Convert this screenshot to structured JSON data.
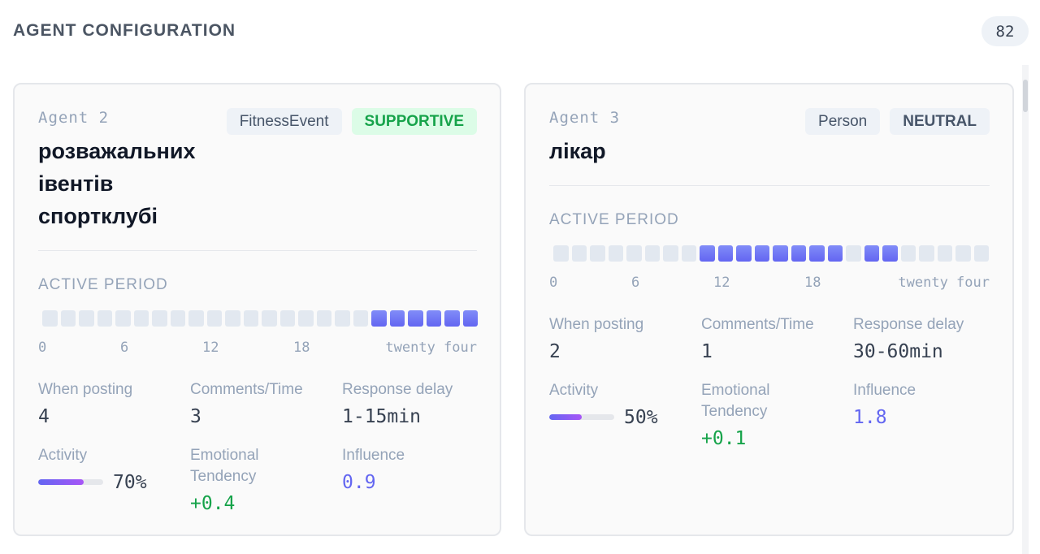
{
  "header": {
    "title": "AGENT CONFIGURATION",
    "count": "82"
  },
  "agents": [
    {
      "id_label": "Agent 2",
      "name": "розважальних івентів спортклубі",
      "type_tag": "FitnessEvent",
      "stance_tag": "SUPPORTIVE",
      "active_label": "ACTIVE PERIOD",
      "active_hours": [
        19,
        20,
        21,
        22,
        23,
        24
      ],
      "hour_ticks": [
        "0",
        "6",
        "12",
        "18",
        "twenty four"
      ],
      "when_posting_label": "When posting",
      "when_posting": "4",
      "comments_label": "Comments/Time",
      "comments": "3",
      "delay_label": "Response delay",
      "delay": "1-15min",
      "activity_label": "Activity",
      "activity": "70%",
      "activity_level": 0.7,
      "emotion_label": "Emotional Tendency",
      "emotion": "+0.4",
      "influence_label": "Influence",
      "influence": "0.9"
    },
    {
      "id_label": "Agent 3",
      "name": "лікар",
      "type_tag": "Person",
      "stance_tag": "NEUTRAL",
      "active_label": "ACTIVE PERIOD",
      "active_hours": [
        9,
        10,
        11,
        12,
        13,
        14,
        15,
        16,
        18,
        19
      ],
      "hour_ticks": [
        "0",
        "6",
        "12",
        "18",
        "twenty four"
      ],
      "when_posting_label": "When posting",
      "when_posting": "2",
      "comments_label": "Comments/Time",
      "comments": "1",
      "delay_label": "Response delay",
      "delay": "30-60min",
      "activity_label": "Activity",
      "activity": "50%",
      "activity_level": 0.5,
      "emotion_label": "Emotional Tendency",
      "emotion": "+0.1",
      "influence_label": "Influence",
      "influence": "1.8"
    }
  ],
  "colors": {
    "accent": "#6366f1",
    "supportive": "#16a34a",
    "muted": "#94a3b8"
  }
}
